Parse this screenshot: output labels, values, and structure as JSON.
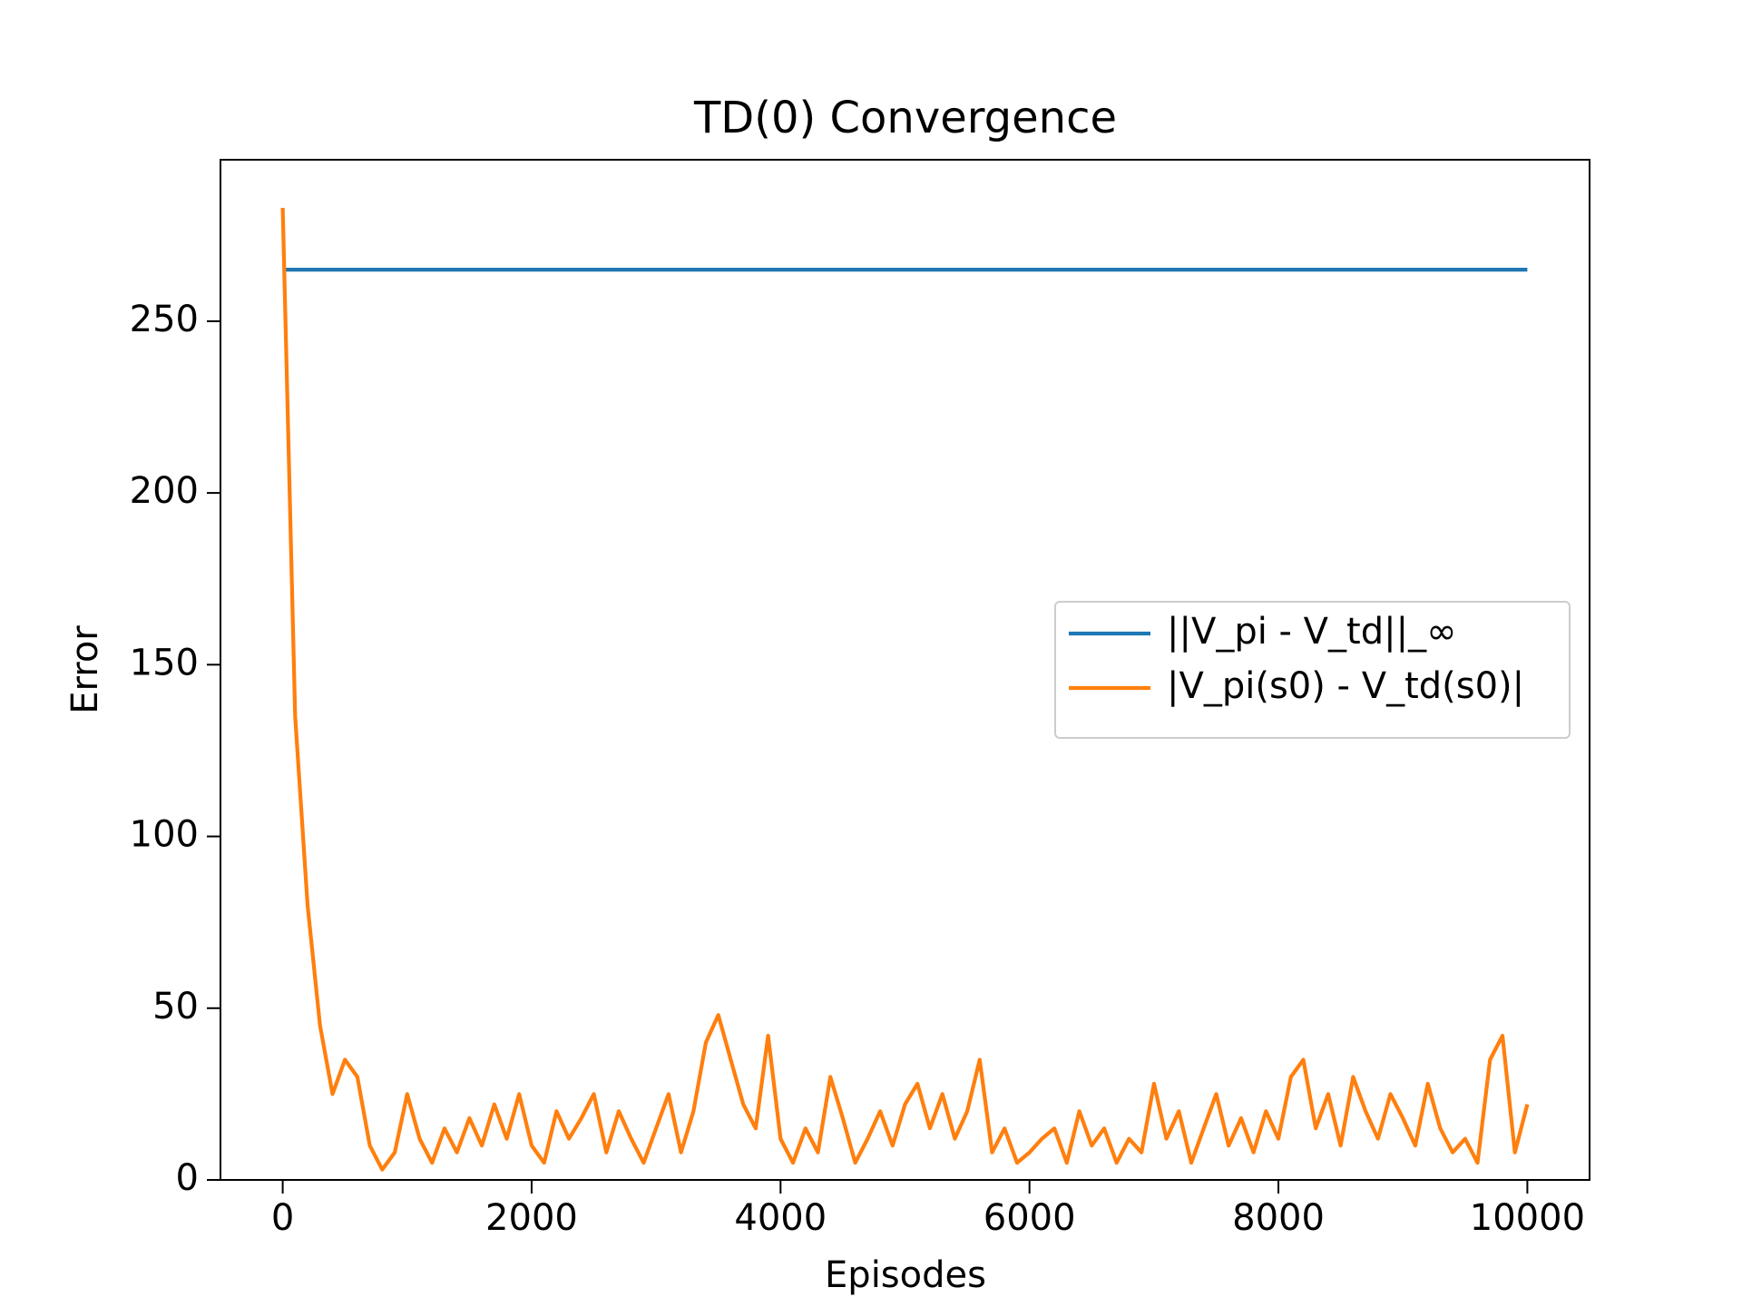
{
  "chart_data": {
    "type": "line",
    "title": "TD(0) Convergence",
    "xlabel": "Episodes",
    "ylabel": "Error",
    "xlim": [
      -500,
      10500
    ],
    "ylim": [
      0,
      297
    ],
    "xticks": [
      0,
      2000,
      4000,
      6000,
      8000,
      10000
    ],
    "yticks": [
      0,
      50,
      100,
      150,
      200,
      250
    ],
    "grid": false,
    "legend": "center right",
    "series": [
      {
        "name": "||V_pi - V_td||_∞",
        "color": "#1f77b4",
        "x": [
          0,
          10000
        ],
        "values": [
          265,
          265
        ]
      },
      {
        "name": "|V_pi(s0) - V_td(s0)|",
        "color": "#ff7f0e",
        "x": [
          0,
          100,
          200,
          300,
          400,
          500,
          600,
          700,
          800,
          900,
          1000,
          1100,
          1200,
          1300,
          1400,
          1500,
          1600,
          1700,
          1800,
          1900,
          2000,
          2100,
          2200,
          2300,
          2400,
          2500,
          2600,
          2700,
          2800,
          2900,
          3000,
          3100,
          3200,
          3300,
          3400,
          3500,
          3600,
          3700,
          3800,
          3900,
          4000,
          4100,
          4200,
          4300,
          4400,
          4500,
          4600,
          4700,
          4800,
          4900,
          5000,
          5100,
          5200,
          5300,
          5400,
          5500,
          5600,
          5700,
          5800,
          5900,
          6000,
          6100,
          6200,
          6300,
          6400,
          6500,
          6600,
          6700,
          6800,
          6900,
          7000,
          7100,
          7200,
          7300,
          7400,
          7500,
          7600,
          7700,
          7800,
          7900,
          8000,
          8100,
          8200,
          8300,
          8400,
          8500,
          8600,
          8700,
          8800,
          8900,
          9000,
          9100,
          9200,
          9300,
          9400,
          9500,
          9600,
          9700,
          9800,
          9900,
          10000
        ],
        "values": [
          283,
          135,
          80,
          45,
          25,
          35,
          30,
          10,
          3,
          8,
          25,
          12,
          5,
          15,
          8,
          18,
          10,
          22,
          12,
          25,
          10,
          5,
          20,
          12,
          18,
          25,
          8,
          20,
          12,
          5,
          15,
          25,
          8,
          20,
          40,
          48,
          35,
          22,
          15,
          42,
          12,
          5,
          15,
          8,
          30,
          18,
          5,
          12,
          20,
          10,
          22,
          28,
          15,
          25,
          12,
          20,
          35,
          8,
          15,
          5,
          8,
          12,
          15,
          5,
          20,
          10,
          15,
          5,
          12,
          8,
          28,
          12,
          20,
          5,
          15,
          25,
          10,
          18,
          8,
          20,
          12,
          30,
          35,
          15,
          25,
          10,
          30,
          20,
          12,
          25,
          18,
          10,
          28,
          15,
          8,
          12,
          5,
          35,
          42,
          8,
          22
        ]
      }
    ]
  }
}
